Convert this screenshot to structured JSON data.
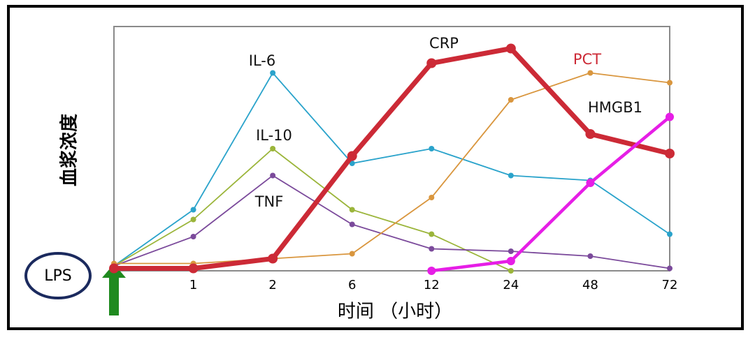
{
  "chart_data": {
    "type": "line",
    "y_label": "血浆浓度",
    "x_label": "时间 （小时）",
    "annotation": "LPS",
    "categories": [
      null,
      "1",
      "2",
      "6",
      "12",
      "24",
      "48",
      "72"
    ],
    "ylim": [
      0,
      100
    ],
    "series": [
      {
        "name": "IL-6",
        "color": "#2aa3cb",
        "values": [
          2,
          25,
          81,
          44,
          50,
          39,
          37,
          15
        ]
      },
      {
        "name": "IL-10",
        "color": "#9bb53a",
        "values": [
          2,
          21,
          50,
          25,
          15,
          0,
          null,
          null
        ]
      },
      {
        "name": "TNF",
        "color": "#7b4a9b",
        "values": [
          2,
          14,
          39,
          19,
          9,
          8,
          6,
          1
        ]
      },
      {
        "name": "CRP",
        "color": "#d9963e",
        "values": [
          3,
          3,
          5,
          7,
          30,
          70,
          81,
          77
        ]
      },
      {
        "name": "PCT",
        "color": "#cc2a36",
        "values": [
          1,
          1,
          5,
          47,
          85,
          91,
          56,
          48
        ]
      },
      {
        "name": "HMGB1",
        "color": "#e61ee6",
        "values": [
          null,
          null,
          null,
          null,
          0,
          4,
          36,
          63
        ]
      }
    ]
  }
}
